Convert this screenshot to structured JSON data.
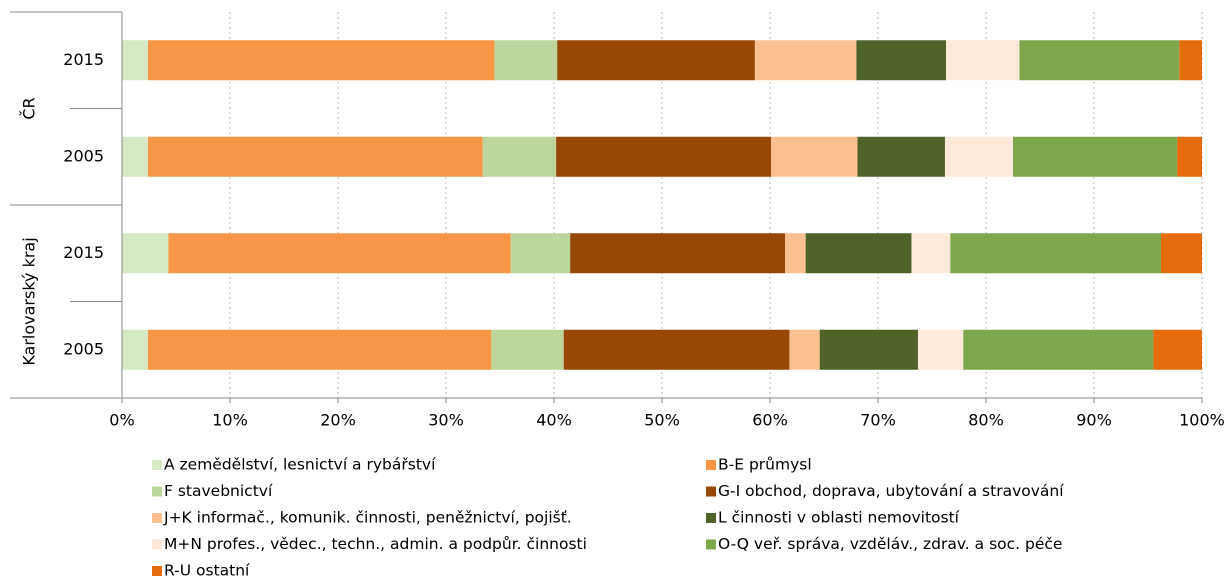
{
  "chart_data": {
    "type": "stacked-bar-horizontal",
    "groups": [
      {
        "label": "ČR",
        "categories": [
          "2015",
          "2005"
        ]
      },
      {
        "label": "Karlovarský kraj",
        "categories": [
          "2015",
          "2005"
        ]
      }
    ],
    "series": [
      {
        "name": "A  zemědělství, lesnictví a rybářství",
        "color": "#d4e9c4",
        "values": [
          2.4,
          2.4,
          4.3,
          2.4
        ]
      },
      {
        "name": "B-E  průmysl",
        "color": "#f79646",
        "values": [
          32.1,
          31.0,
          31.7,
          31.8
        ]
      },
      {
        "name": "F  stavebnictví",
        "color": "#bcd69c",
        "values": [
          5.8,
          6.8,
          5.5,
          6.7
        ]
      },
      {
        "name": "G-I  obchod, doprava, ubytování a stravování",
        "color": "#974706",
        "values": [
          18.3,
          19.9,
          19.9,
          20.9
        ]
      },
      {
        "name": "J+K  informač., komunik. činnosti, peněžnictví, pojišť.",
        "color": "#fac090",
        "values": [
          9.4,
          8.0,
          1.9,
          2.8
        ]
      },
      {
        "name": "L  činnosti v oblasti nemovitostí",
        "color": "#4f6228",
        "values": [
          8.3,
          8.1,
          9.8,
          9.1
        ]
      },
      {
        "name": "M+N  profes., vědec., techn., admin. a podpůr. činnosti",
        "color": "#fde9d9",
        "values": [
          6.8,
          6.3,
          3.6,
          4.2
        ]
      },
      {
        "name": "O-Q  veř. správa, vzděláv., zdrav. a soc. péče",
        "color": "#7ea64a",
        "values": [
          14.8,
          15.2,
          19.5,
          17.6
        ]
      },
      {
        "name": "R-U  ostatní",
        "color": "#e46c0a",
        "values": [
          2.1,
          2.3,
          3.8,
          4.5
        ]
      }
    ],
    "xlim": [
      0,
      100
    ],
    "xticks": [
      {
        "value": 0,
        "label": "0%"
      },
      {
        "value": 10,
        "label": "10%"
      },
      {
        "value": 20,
        "label": "20%"
      },
      {
        "value": 30,
        "label": "30%"
      },
      {
        "value": 40,
        "label": "40%"
      },
      {
        "value": 50,
        "label": "50%"
      },
      {
        "value": 60,
        "label": "60%"
      },
      {
        "value": 70,
        "label": "70%"
      },
      {
        "value": 80,
        "label": "80%"
      },
      {
        "value": 90,
        "label": "90%"
      },
      {
        "value": 100,
        "label": "100%"
      }
    ],
    "grid": true,
    "legend": "bottom"
  }
}
